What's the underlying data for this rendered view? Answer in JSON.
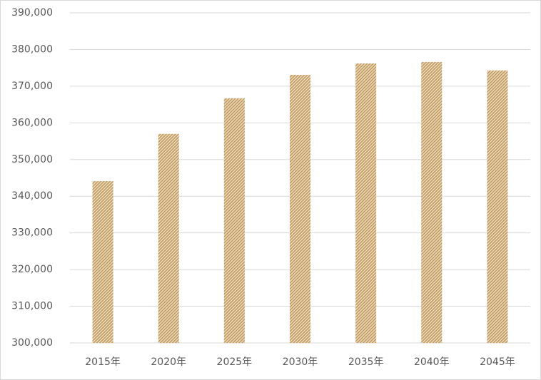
{
  "chart_data": {
    "type": "bar",
    "categories": [
      "2015年",
      "2020年",
      "2025年",
      "2030年",
      "2035年",
      "2040年",
      "2045年"
    ],
    "values": [
      344100,
      357000,
      366700,
      373100,
      376200,
      376600,
      374300
    ],
    "color": "#c29b5f",
    "ylim": [
      300000,
      390000
    ],
    "yticks": [
      {
        "value": 300000,
        "label": "300,000"
      },
      {
        "value": 310000,
        "label": "310,000"
      },
      {
        "value": 320000,
        "label": "320,000"
      },
      {
        "value": 330000,
        "label": "330,000"
      },
      {
        "value": 340000,
        "label": "340,000"
      },
      {
        "value": 350000,
        "label": "350,000"
      },
      {
        "value": 360000,
        "label": "360,000"
      },
      {
        "value": 370000,
        "label": "370,000"
      },
      {
        "value": 380000,
        "label": "380,000"
      },
      {
        "value": 390000,
        "label": "390,000"
      }
    ],
    "grid": true
  }
}
